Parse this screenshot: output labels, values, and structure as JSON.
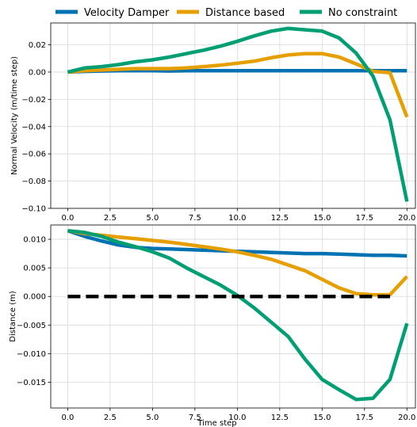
{
  "legend": {
    "placement": "top-center",
    "entries": [
      {
        "label": "Velocity Damper",
        "color": "#0072b2"
      },
      {
        "label": "Distance based",
        "color": "#e69f00"
      },
      {
        "label": "No constraint",
        "color": "#009e73"
      }
    ]
  },
  "chart_data": [
    {
      "type": "line",
      "xlabel": "",
      "ylabel": "Normal Velocity (m/time step)",
      "xlim": [
        -1,
        20.5
      ],
      "ylim": [
        -0.1,
        0.036
      ],
      "grid": true,
      "xticks": [
        0,
        2.5,
        5,
        7.5,
        10,
        12.5,
        15,
        17.5,
        20
      ],
      "xtick_labels": [
        "0.0",
        "2.5",
        "5.0",
        "7.5",
        "10.0",
        "12.5",
        "15.0",
        "17.5",
        "20.0"
      ],
      "yticks": [
        -0.1,
        -0.08,
        -0.06,
        -0.04,
        -0.02,
        0,
        0.02
      ],
      "ytick_labels": [
        "−0.10",
        "−0.08",
        "−0.06",
        "−0.04",
        "−0.02",
        "0.00",
        "0.02"
      ],
      "x": [
        0,
        1,
        2,
        3,
        4,
        5,
        6,
        7,
        8,
        9,
        10,
        11,
        12,
        13,
        14,
        15,
        16,
        17,
        18,
        19,
        20
      ],
      "series": [
        {
          "name": "Velocity Damper",
          "color": "#0072b2",
          "values": [
            0,
            0.0005,
            0.0008,
            0.001,
            0.001,
            0.001,
            0.0008,
            0.001,
            0.001,
            0.001,
            0.001,
            0.001,
            0.001,
            0.001,
            0.001,
            0.001,
            0.001,
            0.001,
            0.001,
            0.001,
            0.001
          ]
        },
        {
          "name": "Distance based",
          "color": "#e69f00",
          "values": [
            0,
            0.001,
            0.0015,
            0.002,
            0.0025,
            0.0025,
            0.0025,
            0.003,
            0.004,
            0.005,
            0.0065,
            0.008,
            0.0105,
            0.0125,
            0.0135,
            0.0135,
            0.011,
            0.006,
            0.0005,
            -0.0005,
            -0.033
          ]
        },
        {
          "name": "No constraint",
          "color": "#009e73",
          "values": [
            0,
            0.003,
            0.004,
            0.0055,
            0.0075,
            0.009,
            0.011,
            0.0135,
            0.016,
            0.019,
            0.0225,
            0.0265,
            0.03,
            0.032,
            0.031,
            0.03,
            0.025,
            0.014,
            -0.003,
            -0.035,
            -0.095
          ]
        }
      ]
    },
    {
      "type": "line",
      "xlabel": "Time step",
      "ylabel": "Distance (m)",
      "xlim": [
        -1,
        20.5
      ],
      "ylim": [
        -0.0195,
        0.0125
      ],
      "grid": true,
      "xticks": [
        0,
        2.5,
        5,
        7.5,
        10,
        12.5,
        15,
        17.5,
        20
      ],
      "xtick_labels": [
        "0.0",
        "2.5",
        "5.0",
        "7.5",
        "10.0",
        "12.5",
        "15.0",
        "17.5",
        "20.0"
      ],
      "yticks": [
        -0.015,
        -0.01,
        -0.005,
        0,
        0.005,
        0.01
      ],
      "ytick_labels": [
        "−0.015",
        "−0.010",
        "−0.005",
        "0.000",
        "0.005",
        "0.010"
      ],
      "x": [
        0,
        1,
        2,
        3,
        4,
        5,
        6,
        7,
        8,
        9,
        10,
        11,
        12,
        13,
        14,
        15,
        16,
        17,
        18,
        19,
        20
      ],
      "series": [
        {
          "name": "Velocity Damper",
          "color": "#0072b2",
          "values": [
            0.0115,
            0.0105,
            0.0097,
            0.009,
            0.0086,
            0.0084,
            0.0083,
            0.0082,
            0.0081,
            0.008,
            0.0079,
            0.0078,
            0.0077,
            0.0076,
            0.0075,
            0.0075,
            0.0074,
            0.0073,
            0.0072,
            0.0072,
            0.0071
          ]
        },
        {
          "name": "Distance based",
          "color": "#e69f00",
          "values": [
            0.0115,
            0.011,
            0.0107,
            0.0104,
            0.0101,
            0.0098,
            0.0095,
            0.0091,
            0.0087,
            0.0083,
            0.0078,
            0.0072,
            0.0065,
            0.0055,
            0.0045,
            0.003,
            0.0015,
            0.0005,
            0.0003,
            0.0003,
            0.0035
          ]
        },
        {
          "name": "No constraint",
          "color": "#009e73",
          "values": [
            0.0115,
            0.0112,
            0.0105,
            0.0095,
            0.0087,
            0.0078,
            0.0067,
            0.005,
            0.0035,
            0.002,
            0.0002,
            -0.002,
            -0.0045,
            -0.007,
            -0.011,
            -0.0145,
            -0.0163,
            -0.018,
            -0.0178,
            -0.0145,
            -0.0047
          ]
        }
      ],
      "annotations": [
        {
          "type": "dashed-line",
          "color": "#000000",
          "x": [
            0,
            19
          ],
          "y": [
            0,
            0
          ]
        }
      ]
    }
  ]
}
